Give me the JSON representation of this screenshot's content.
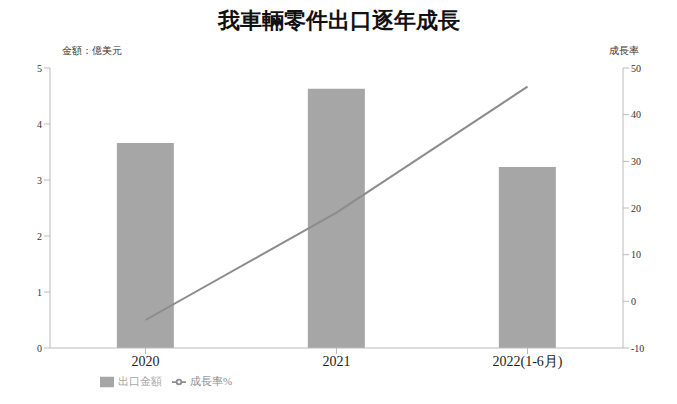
{
  "chart_data": {
    "type": "bar",
    "title": "我車輛零件出口逐年成長",
    "y_label": "金額：億美元",
    "y2_label": "成長率",
    "categories": [
      "2020",
      "2021",
      "2022(1-6月)"
    ],
    "series": [
      {
        "name": "出口金額",
        "type": "bar",
        "color": "#a6a6a6",
        "values": [
          3.66,
          4.63,
          3.23
        ]
      },
      {
        "name": "成長率%",
        "type": "line",
        "axis": "y2",
        "color": "#8c8c8c",
        "values": [
          -4,
          19,
          46
        ]
      }
    ],
    "ylim": [
      0,
      5
    ],
    "yticks": [
      0,
      1,
      2,
      3,
      4,
      5
    ],
    "y2lim": [
      -10,
      50
    ],
    "y2ticks": [
      -10,
      0,
      10,
      20,
      30,
      40,
      50
    ],
    "grid": false,
    "legend": "bottom"
  }
}
